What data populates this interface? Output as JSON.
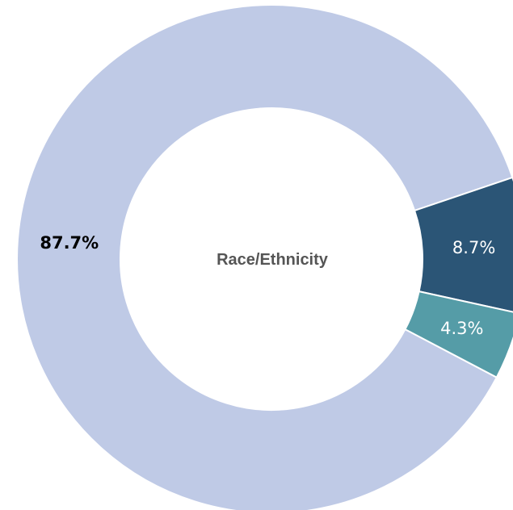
{
  "chart_data": {
    "type": "pie",
    "donut": true,
    "center_label": "Race/Ethnicity",
    "slices": [
      {
        "value": 87.7,
        "label": "87.7%",
        "color": "#bfcae6",
        "label_color": "#000000",
        "label_bold": true
      },
      {
        "value": 8.7,
        "label": "8.7%",
        "color": "#2b5576",
        "label_color": "#ffffff",
        "label_bold": false
      },
      {
        "value": 4.3,
        "label": "4.3%",
        "color": "#559ca7",
        "label_color": "#ffffff",
        "label_bold": false
      }
    ],
    "legend": "none"
  }
}
